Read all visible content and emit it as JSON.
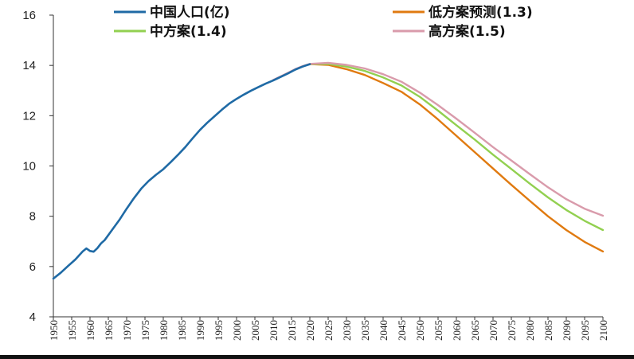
{
  "chart_data": {
    "type": "line",
    "title": "",
    "xlabel": "",
    "ylabel": "",
    "xlim": [
      1950,
      2100
    ],
    "ylim": [
      4,
      16
    ],
    "yticks": [
      "4",
      "6",
      "8",
      "10",
      "12",
      "14",
      "16"
    ],
    "xticks": [
      "1950",
      "1955",
      "1960",
      "1965",
      "1970",
      "1975",
      "1980",
      "1985",
      "1990",
      "1995",
      "2000",
      "2005",
      "2010",
      "2015",
      "2020",
      "2025",
      "2030",
      "2035",
      "2040",
      "2045",
      "2050",
      "2055",
      "2060",
      "2065",
      "2070",
      "2075",
      "2080",
      "2085",
      "2090",
      "2095",
      "2100"
    ],
    "legend_position": "top",
    "series": [
      {
        "name": "中国人口(亿)",
        "color": "#1f6aa5",
        "x": [
          1950,
          1952,
          1954,
          1956,
          1958,
          1959,
          1960,
          1961,
          1962,
          1963,
          1964,
          1966,
          1968,
          1970,
          1972,
          1974,
          1976,
          1978,
          1980,
          1982,
          1984,
          1986,
          1988,
          1990,
          1992,
          1994,
          1996,
          1998,
          2000,
          2002,
          2004,
          2006,
          2008,
          2010,
          2012,
          2014,
          2016,
          2018,
          2020
        ],
        "values": [
          5.52,
          5.75,
          6.02,
          6.28,
          6.6,
          6.72,
          6.62,
          6.59,
          6.73,
          6.92,
          7.05,
          7.45,
          7.85,
          8.3,
          8.72,
          9.1,
          9.4,
          9.65,
          9.87,
          10.15,
          10.44,
          10.75,
          11.1,
          11.43,
          11.72,
          11.98,
          12.24,
          12.48,
          12.67,
          12.84,
          13.0,
          13.14,
          13.28,
          13.4,
          13.54,
          13.68,
          13.83,
          13.95,
          14.05
        ]
      },
      {
        "name": "低方案预测(1.3)",
        "color": "#e07a10",
        "x": [
          2020,
          2025,
          2030,
          2035,
          2040,
          2045,
          2050,
          2055,
          2060,
          2065,
          2070,
          2075,
          2080,
          2085,
          2090,
          2095,
          2100
        ],
        "values": [
          14.05,
          14.02,
          13.85,
          13.62,
          13.3,
          12.95,
          12.45,
          11.85,
          11.2,
          10.55,
          9.9,
          9.25,
          8.62,
          8.0,
          7.45,
          6.98,
          6.6
        ]
      },
      {
        "name": "中方案(1.4)",
        "color": "#92d050",
        "x": [
          2020,
          2025,
          2030,
          2035,
          2040,
          2045,
          2050,
          2055,
          2060,
          2065,
          2070,
          2075,
          2080,
          2085,
          2090,
          2095,
          2100
        ],
        "values": [
          14.05,
          14.06,
          13.95,
          13.78,
          13.52,
          13.2,
          12.75,
          12.2,
          11.62,
          11.05,
          10.45,
          9.88,
          9.3,
          8.75,
          8.25,
          7.82,
          7.45
        ]
      },
      {
        "name": "高方案(1.5)",
        "color": "#d99bab",
        "x": [
          2010,
          2012,
          2014,
          2016,
          2018,
          2020,
          2025,
          2030,
          2035,
          2040,
          2045,
          2050,
          2055,
          2060,
          2065,
          2070,
          2075,
          2080,
          2085,
          2090,
          2095,
          2100
        ],
        "values": [
          13.42,
          13.56,
          13.7,
          13.85,
          13.97,
          14.06,
          14.1,
          14.02,
          13.88,
          13.65,
          13.35,
          12.92,
          12.42,
          11.88,
          11.32,
          10.75,
          10.22,
          9.68,
          9.15,
          8.68,
          8.3,
          8.02
        ]
      }
    ]
  }
}
